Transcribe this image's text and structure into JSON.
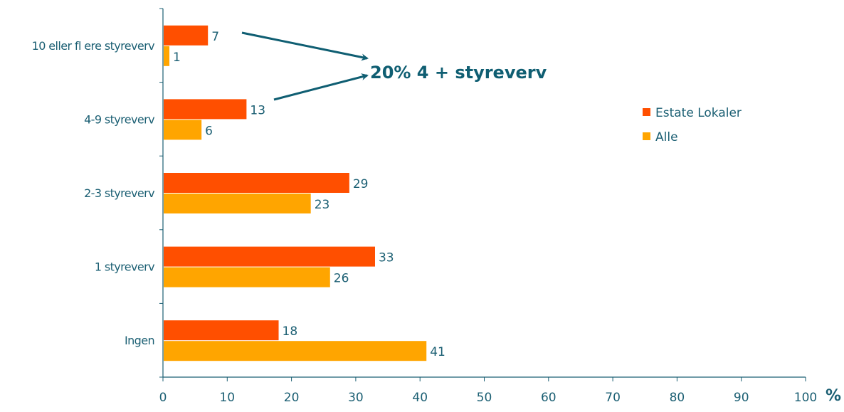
{
  "chart_data": {
    "type": "bar",
    "orientation": "horizontal",
    "categories": [
      "10 eller fl ere styreverv",
      "4-9 styreverv",
      "2-3 styreverv",
      "1 styreverv",
      "Ingen"
    ],
    "series": [
      {
        "name": "Estate Lokaler",
        "color": "#ff4f00",
        "values": [
          7,
          13,
          29,
          33,
          18
        ]
      },
      {
        "name": "Alle",
        "color": "#ffa500",
        "values": [
          1,
          6,
          23,
          26,
          41
        ]
      }
    ],
    "xlim": [
      0,
      100
    ],
    "xticks": [
      0,
      10,
      20,
      30,
      40,
      50,
      60,
      70,
      80,
      90,
      100
    ],
    "xunit": "%",
    "annotation": "20% 4 + styreverv",
    "legend_position": "right",
    "grid": false
  },
  "colors": {
    "axis": "#1b5f73",
    "text": "#1b5f73",
    "arrow": "#0f5e72"
  }
}
